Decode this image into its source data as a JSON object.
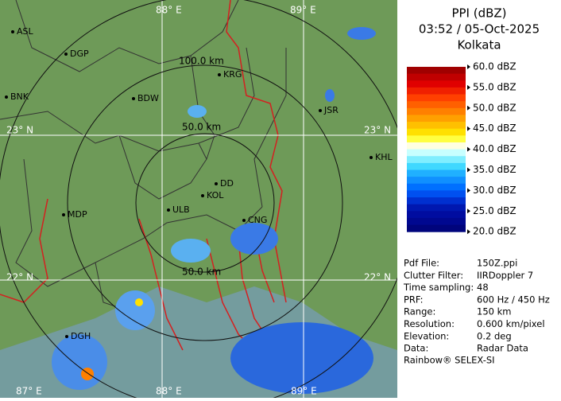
{
  "header": {
    "product": "PPI (dBZ)",
    "time": "03:52 / 05-Oct-2025",
    "location": "Kolkata"
  },
  "legend": {
    "labels": [
      "60.0 dBZ",
      "55.0 dBZ",
      "50.0 dBZ",
      "45.0 dBZ",
      "40.0 dBZ",
      "35.0 dBZ",
      "30.0 dBZ",
      "25.0 dBZ",
      "20.0 dBZ"
    ],
    "band_colors": [
      [
        "#a00000",
        "#c00000",
        "#e00000"
      ],
      [
        "#f02000",
        "#ff4000",
        "#ff6000"
      ],
      [
        "#ff8000",
        "#ffa000",
        "#ffc000"
      ],
      [
        "#ffe000",
        "#ffff40",
        "#ffffe0"
      ],
      [
        "#c8ffff",
        "#80eeff",
        "#40d8ff"
      ],
      [
        "#20b0ff",
        "#1090ff",
        "#0070ff"
      ],
      [
        "#0050f0",
        "#0030d0",
        "#0018b0"
      ],
      [
        "#000ca0",
        "#000890",
        "#00047c"
      ]
    ]
  },
  "info": [
    [
      "Pdf File:",
      "150Z.ppi"
    ],
    [
      "Clutter Filter:",
      "IIRDoppler 7"
    ],
    [
      "Time sampling:",
      "48"
    ],
    [
      "PRF:",
      "600 Hz / 450 Hz"
    ],
    [
      "Range:",
      "150 km"
    ],
    [
      "Resolution:",
      "0.600 km/pixel"
    ],
    [
      "Elevation:",
      "0.2 deg"
    ],
    [
      "Data:",
      "Radar Data"
    ]
  ],
  "footer": "Rainbow® SELEX-SI",
  "map": {
    "grid_labels": [
      "88° E",
      "89° E",
      "23° N",
      "23° N",
      "22° N",
      "22° N",
      "87° E",
      "88° E",
      "89° E"
    ],
    "ring_labels": [
      "100.0 km",
      "50.0 km",
      "50.0 km"
    ],
    "cities": [
      "ASL",
      "DGP",
      "BNK",
      "BDW",
      "KRG",
      "JSR",
      "KHL",
      "DD",
      "KOL",
      "ULB",
      "CNG",
      "MDP",
      "DGH"
    ]
  }
}
